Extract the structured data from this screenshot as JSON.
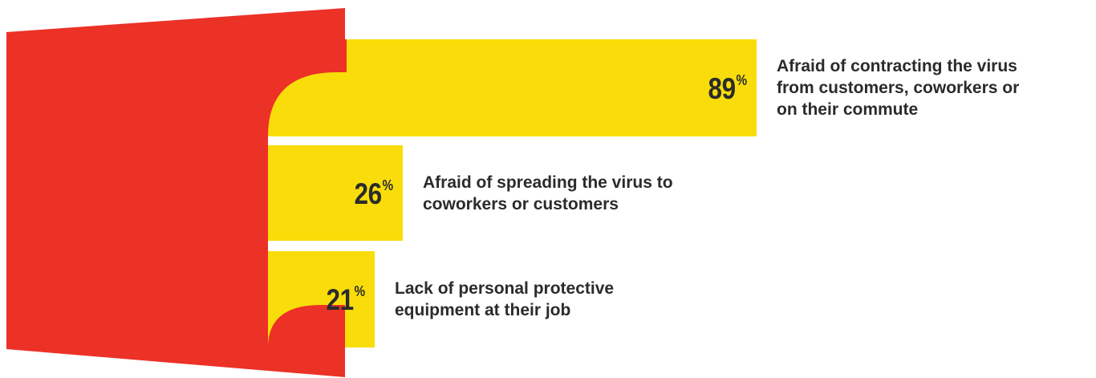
{
  "chart_data": {
    "type": "bar",
    "orientation": "horizontal",
    "categories": [
      "Afraid of contracting the virus\nfrom customers, coworkers or\non their commute",
      "Afraid of spreading the virus to\ncoworkers or customers",
      "Lack of personal protective\nequipment at their job"
    ],
    "values": [
      89,
      26,
      21
    ],
    "value_labels": [
      "89",
      "26",
      "21"
    ],
    "unit": "%",
    "title": "",
    "xlabel": "",
    "ylabel": "",
    "xlim": [
      0,
      100
    ],
    "grid": false,
    "legend": "none",
    "colors": {
      "bar": "#F9DD0A",
      "panel": "#EC3127",
      "text": "#2B2B2B",
      "background": "#FFFFFF"
    }
  }
}
